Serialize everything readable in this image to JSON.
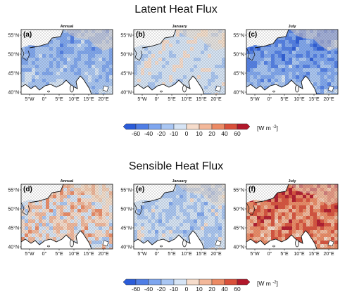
{
  "sections": [
    {
      "title": "Latent Heat Flux",
      "panels": [
        {
          "label": "(a)",
          "title": "Annual",
          "field": {
            "base": -0.35,
            "grad": -0.2,
            "noise": 0.15
          }
        },
        {
          "label": "(b)",
          "title": "January",
          "field": {
            "base": -0.1,
            "grad": 0.05,
            "noise": 0.1
          }
        },
        {
          "label": "(c)",
          "title": "July",
          "field": {
            "base": -0.5,
            "grad": -0.35,
            "noise": 0.22
          }
        }
      ]
    },
    {
      "title": "Sensible Heat Flux",
      "panels": [
        {
          "label": "(d)",
          "title": "Annual",
          "field": {
            "base": 0.1,
            "grad": 0.15,
            "noise": 0.35
          }
        },
        {
          "label": "(e)",
          "title": "January",
          "field": {
            "base": -0.2,
            "grad": -0.05,
            "noise": 0.18
          }
        },
        {
          "label": "(f)",
          "title": "July",
          "field": {
            "base": 0.55,
            "grad": 0.25,
            "noise": 0.3
          }
        }
      ]
    }
  ],
  "lat_ticks": [
    "55°N",
    "50°N",
    "45°N",
    "40°N"
  ],
  "lon_ticks": [
    "5°W",
    "0°",
    "5°E",
    "10°E",
    "15°E",
    "20°E"
  ],
  "colorbar": {
    "ticks": [
      "-60",
      "-40",
      "-20",
      "-10",
      "0",
      "10",
      "20",
      "40",
      "60"
    ],
    "unit": "[W m",
    "unit_exp": "-2",
    "unit_close": "]",
    "colors": [
      "#2b5cd9",
      "#4f7ee6",
      "#7ea6ef",
      "#a9c6f3",
      "#d6e4f5",
      "#f6dccb",
      "#f3b89a",
      "#ec8a64",
      "#d9503a",
      "#b2182b"
    ]
  }
}
